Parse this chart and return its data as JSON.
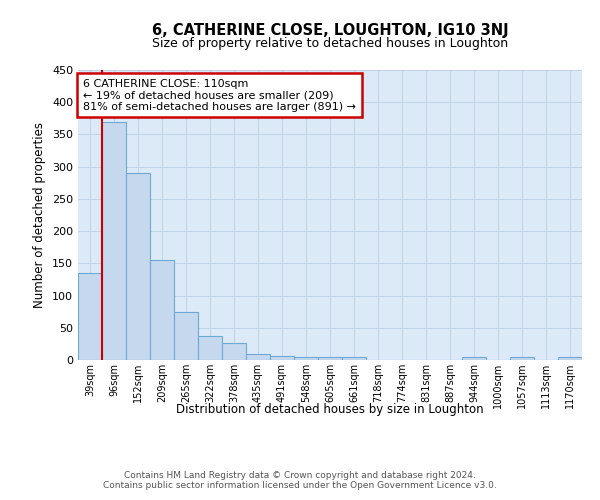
{
  "title": "6, CATHERINE CLOSE, LOUGHTON, IG10 3NJ",
  "subtitle": "Size of property relative to detached houses in Loughton",
  "xlabel": "Distribution of detached houses by size in Loughton",
  "ylabel": "Number of detached properties",
  "bar_values": [
    135,
    370,
    290,
    155,
    74,
    37,
    26,
    10,
    6,
    5,
    4,
    4,
    0,
    0,
    0,
    0,
    4,
    0,
    4,
    0,
    4
  ],
  "categories": [
    "39sqm",
    "96sqm",
    "152sqm",
    "209sqm",
    "265sqm",
    "322sqm",
    "378sqm",
    "435sqm",
    "491sqm",
    "548sqm",
    "605sqm",
    "661sqm",
    "718sqm",
    "774sqm",
    "831sqm",
    "887sqm",
    "944sqm",
    "1000sqm",
    "1057sqm",
    "1113sqm",
    "1170sqm"
  ],
  "bar_color": "#c5d8ee",
  "bar_edge_color": "#6aaad4",
  "red_line_x": 0.5,
  "annotation_line1": "6 CATHERINE CLOSE: 110sqm",
  "annotation_line2": "← 19% of detached houses are smaller (209)",
  "annotation_line3": "81% of semi-detached houses are larger (891) →",
  "annotation_box_color": "#ffffff",
  "annotation_box_edge": "#cc0000",
  "ylim": [
    0,
    450
  ],
  "yticks": [
    0,
    50,
    100,
    150,
    200,
    250,
    300,
    350,
    400,
    450
  ],
  "grid_color": "#c0d4e8",
  "bg_color": "#dce9f7",
  "footer": "Contains HM Land Registry data © Crown copyright and database right 2024.\nContains public sector information licensed under the Open Government Licence v3.0.",
  "title_fontsize": 10.5,
  "subtitle_fontsize": 9
}
